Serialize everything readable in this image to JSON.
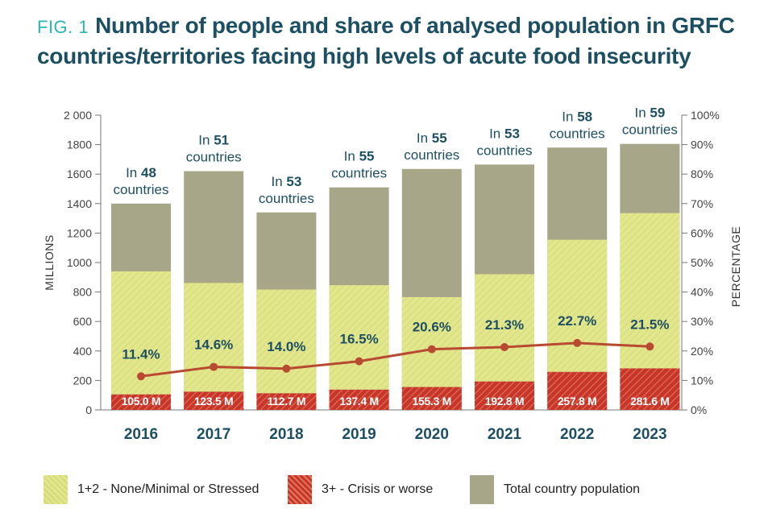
{
  "figure": {
    "label": "FIG. 1",
    "title_line1": "Number of people and share of analysed population in GRFC",
    "title_line2": "countries/territories facing high levels of acute food insecurity"
  },
  "colors": {
    "total": "#a8a688",
    "stressed": "#e2e68c",
    "stressed_hatch": "#d4d978",
    "crisis": "#c8352a",
    "crisis_hatch": "#e07a5c",
    "line": "#b84a32",
    "text_dark": "#1d4f63",
    "axis_text": "#444444"
  },
  "chart_data": {
    "type": "bar",
    "title": "Number of people and share of analysed population in GRFC countries/territories facing high levels of acute food insecurity",
    "categories": [
      "2016",
      "2017",
      "2018",
      "2019",
      "2020",
      "2021",
      "2022",
      "2023"
    ],
    "series": [
      {
        "name": "Total country population",
        "values": [
          1400,
          1620,
          1340,
          1510,
          1635,
          1665,
          1780,
          1805
        ]
      },
      {
        "name": "1+2 - None/Minimal or Stressed",
        "values": [
          835,
          738,
          704,
          709,
          610,
          728,
          897,
          1054
        ]
      },
      {
        "name": "3+ - Crisis or worse",
        "values": [
          105.0,
          123.5,
          112.7,
          137.4,
          155.3,
          192.8,
          257.8,
          281.6
        ]
      }
    ],
    "share_percent": [
      11.4,
      14.6,
      14.0,
      16.5,
      20.6,
      21.3,
      22.7,
      21.5
    ],
    "crisis_labels": [
      "105.0 M",
      "123.5 M",
      "112.7 M",
      "137.4 M",
      "155.3 M",
      "192.8 M",
      "257.8 M",
      "281.6 M"
    ],
    "share_labels": [
      "11.4%",
      "14.6%",
      "14.0%",
      "16.5%",
      "20.6%",
      "21.3%",
      "22.7%",
      "21.5%"
    ],
    "country_counts": [
      {
        "prefix": "In ",
        "count": "48",
        "suffix": "countries"
      },
      {
        "prefix": "In ",
        "count": "51",
        "suffix": "countries"
      },
      {
        "prefix": "In ",
        "count": "53",
        "suffix": "countries"
      },
      {
        "prefix": "In ",
        "count": "55",
        "suffix": "countries"
      },
      {
        "prefix": "In ",
        "count": "55",
        "suffix": "countries"
      },
      {
        "prefix": "In ",
        "count": "53",
        "suffix": "countries"
      },
      {
        "prefix": "In ",
        "count": "58",
        "suffix": "countries"
      },
      {
        "prefix": "In ",
        "count": "59",
        "suffix": "countries"
      }
    ],
    "ylabel": "MILLIONS",
    "y2label": "PERCENTAGE",
    "ylim": [
      0,
      2000
    ],
    "y2lim": [
      0,
      100
    ],
    "yticks": [
      "0",
      "200",
      "400",
      "600",
      "800",
      "1000",
      "1200",
      "1400",
      "1600",
      "1800",
      "2 000"
    ],
    "y2ticks": [
      "0%",
      "10%",
      "20%",
      "30%",
      "40%",
      "50%",
      "60%",
      "70%",
      "80%",
      "90%",
      "100%"
    ],
    "grid": false
  },
  "legend": {
    "stressed": "1+2 - None/Minimal or Stressed",
    "crisis": "3+ - Crisis or worse",
    "total": "Total country population"
  }
}
